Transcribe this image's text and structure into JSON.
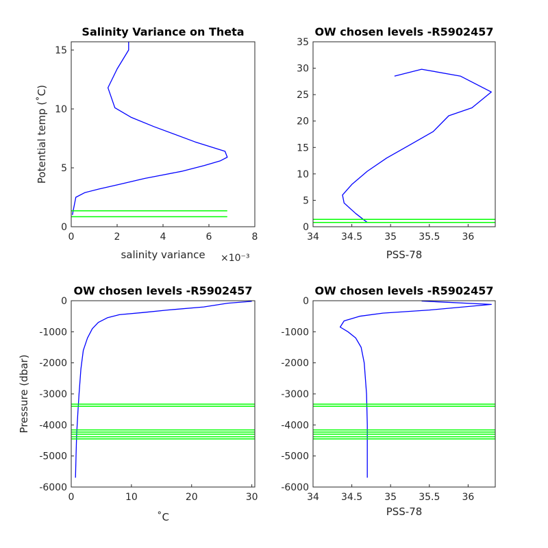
{
  "figure": {
    "panels": [
      {
        "title": "Salinity Variance on Theta",
        "xlabel": "salinity variance",
        "ylabel": "Potential temp (˚C)",
        "exponent": "×10⁻³",
        "xlim": [
          0,
          8
        ],
        "ylim": [
          0,
          15.7
        ],
        "xticks": [
          0,
          2,
          4,
          6,
          8
        ],
        "yticks": [
          0,
          5,
          10,
          15
        ]
      },
      {
        "title": "OW chosen levels -R5902457",
        "xlabel": "PSS-78",
        "ylabel": "",
        "xlim": [
          34,
          36.35
        ],
        "ylim": [
          0,
          35
        ],
        "xticks": [
          "34",
          "34.5",
          "35",
          "35.5",
          "36"
        ],
        "xtick_values": [
          34,
          34.5,
          35,
          35.5,
          36
        ],
        "yticks": [
          0,
          5,
          10,
          15,
          20,
          25,
          30,
          35
        ]
      },
      {
        "title": "OW chosen levels -R5902457",
        "xlabel": "˚C",
        "ylabel": "Pressure (dbar)",
        "xlim": [
          0,
          30.5
        ],
        "ylim": [
          -6000,
          0
        ],
        "xticks": [
          0,
          10,
          20,
          30
        ],
        "yticks": [
          -6000,
          -5000,
          -4000,
          -3000,
          -2000,
          -1000,
          0
        ]
      },
      {
        "title": "OW chosen levels -R5902457",
        "xlabel": "PSS-78",
        "ylabel": "",
        "xlim": [
          34,
          36.35
        ],
        "ylim": [
          -6000,
          0
        ],
        "xticks": [
          "34",
          "34.5",
          "35",
          "35.5",
          "36"
        ],
        "xtick_values": [
          34,
          34.5,
          35,
          35.5,
          36
        ],
        "yticks": [
          -6000,
          -5000,
          -4000,
          -3000,
          -2000,
          -1000,
          0
        ]
      }
    ]
  },
  "chart_data": [
    {
      "type": "line",
      "title": "Salinity Variance on Theta",
      "xlabel": "salinity variance (×10⁻³)",
      "ylabel": "Potential temp (˚C)",
      "xlim": [
        0,
        8
      ],
      "ylim": [
        0,
        15.7
      ],
      "series": [
        {
          "color": "#0000ff",
          "x": [
            0.05,
            0.1,
            0.2,
            0.6,
            1.2,
            2.1,
            3.2,
            4.8,
            5.8,
            6.5,
            6.8,
            6.7,
            5.4,
            3.6,
            2.6,
            1.9,
            1.6,
            2.0,
            2.5,
            2.5
          ],
          "y": [
            1.0,
            1.5,
            2.5,
            2.9,
            3.2,
            3.6,
            4.1,
            4.7,
            5.2,
            5.6,
            5.9,
            6.4,
            7.2,
            8.5,
            9.3,
            10.1,
            11.8,
            13.4,
            15.0,
            15.7
          ]
        },
        {
          "color": "#00ff00",
          "x": [
            0,
            6.8
          ],
          "y": [
            1.35,
            1.35
          ]
        },
        {
          "color": "#00ff00",
          "x": [
            0,
            6.8
          ],
          "y": [
            0.85,
            0.85
          ]
        }
      ]
    },
    {
      "type": "line",
      "title": "OW chosen levels -R5902457",
      "xlabel": "PSS-78",
      "ylabel": "",
      "xlim": [
        34,
        36.35
      ],
      "ylim": [
        0,
        35
      ],
      "series": [
        {
          "color": "#0000ff",
          "x": [
            34.7,
            34.55,
            34.4,
            34.38,
            34.5,
            34.7,
            34.95,
            35.25,
            35.55,
            35.75,
            36.05,
            36.3,
            35.9,
            35.4,
            35.05
          ],
          "y": [
            0.8,
            2.5,
            4.5,
            6.0,
            8.0,
            10.5,
            13.0,
            15.5,
            18.0,
            21.0,
            22.5,
            25.5,
            28.5,
            29.8,
            28.5
          ]
        },
        {
          "color": "#00ff00",
          "x": [
            34,
            36.35
          ],
          "y": [
            1.4,
            1.4
          ]
        },
        {
          "color": "#00ff00",
          "x": [
            34,
            36.35
          ],
          "y": [
            0.8,
            0.8
          ]
        }
      ]
    },
    {
      "type": "line",
      "title": "OW chosen levels -R5902457",
      "xlabel": "˚C",
      "ylabel": "Pressure (dbar)",
      "xlim": [
        0,
        30.5
      ],
      "ylim": [
        -6000,
        0
      ],
      "series": [
        {
          "color": "#0000ff",
          "x": [
            30.0,
            26.0,
            22.0,
            16.0,
            12.0,
            8.0,
            6.0,
            4.5,
            3.5,
            2.7,
            2.0,
            1.6,
            1.3,
            1.1,
            0.9,
            0.8,
            0.7
          ],
          "y": [
            -20,
            -80,
            -200,
            -300,
            -380,
            -450,
            -550,
            -700,
            -900,
            -1200,
            -1600,
            -2200,
            -3000,
            -3600,
            -4300,
            -5000,
            -5700
          ]
        },
        {
          "color": "#00ff00",
          "x": [
            0,
            30.5
          ],
          "y": [
            -3330,
            -3330
          ]
        },
        {
          "color": "#00ff00",
          "x": [
            0,
            30.5
          ],
          "y": [
            -3400,
            -3400
          ]
        },
        {
          "color": "#00ff00",
          "x": [
            0,
            30.5
          ],
          "y": [
            -4160,
            -4160
          ]
        },
        {
          "color": "#00ff00",
          "x": [
            0,
            30.5
          ],
          "y": [
            -4230,
            -4230
          ]
        },
        {
          "color": "#00ff00",
          "x": [
            0,
            30.5
          ],
          "y": [
            -4300,
            -4300
          ]
        },
        {
          "color": "#00ff00",
          "x": [
            0,
            30.5
          ],
          "y": [
            -4380,
            -4380
          ]
        },
        {
          "color": "#00ff00",
          "x": [
            0,
            30.5
          ],
          "y": [
            -4450,
            -4450
          ]
        }
      ]
    },
    {
      "type": "line",
      "title": "OW chosen levels -R5902457",
      "xlabel": "PSS-78",
      "ylabel": "",
      "xlim": [
        34,
        36.35
      ],
      "ylim": [
        -6000,
        0
      ],
      "series": [
        {
          "color": "#0000ff",
          "x": [
            35.4,
            36.3,
            35.5,
            34.9,
            34.6,
            34.4,
            34.35,
            34.45,
            34.55,
            34.62,
            34.66,
            34.69,
            34.7,
            34.7,
            34.7
          ],
          "y": [
            -10,
            -120,
            -300,
            -400,
            -500,
            -650,
            -850,
            -1000,
            -1200,
            -1500,
            -2000,
            -3000,
            -4000,
            -5000,
            -5700
          ]
        },
        {
          "color": "#00ff00",
          "x": [
            34,
            36.35
          ],
          "y": [
            -3330,
            -3330
          ]
        },
        {
          "color": "#00ff00",
          "x": [
            34,
            36.35
          ],
          "y": [
            -3400,
            -3400
          ]
        },
        {
          "color": "#00ff00",
          "x": [
            34,
            36.35
          ],
          "y": [
            -4160,
            -4160
          ]
        },
        {
          "color": "#00ff00",
          "x": [
            34,
            36.35
          ],
          "y": [
            -4230,
            -4230
          ]
        },
        {
          "color": "#00ff00",
          "x": [
            34,
            36.35
          ],
          "y": [
            -4300,
            -4300
          ]
        },
        {
          "color": "#00ff00",
          "x": [
            34,
            36.35
          ],
          "y": [
            -4380,
            -4380
          ]
        },
        {
          "color": "#00ff00",
          "x": [
            34,
            36.35
          ],
          "y": [
            -4450,
            -4450
          ]
        }
      ]
    }
  ]
}
